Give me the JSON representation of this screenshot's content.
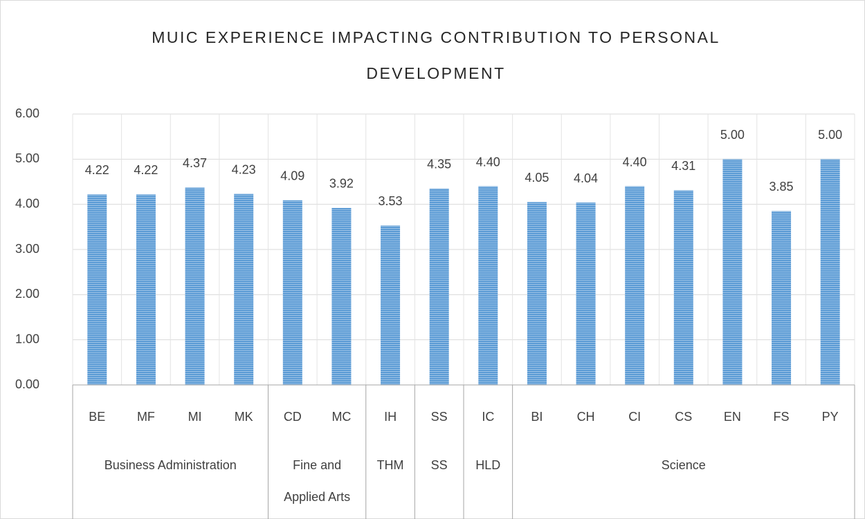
{
  "chart_data": {
    "type": "bar",
    "title": "MUIC EXPERIENCE IMPACTING CONTRIBUTION TO PERSONAL DEVELOPMENT",
    "categories": [
      "BE",
      "MF",
      "MI",
      "MK",
      "CD",
      "MC",
      "IH",
      "SS",
      "IC",
      "BI",
      "CH",
      "CI",
      "CS",
      "EN",
      "FS",
      "PY"
    ],
    "values": [
      4.22,
      4.22,
      4.37,
      4.23,
      4.09,
      3.92,
      3.53,
      4.35,
      4.4,
      4.05,
      4.04,
      4.4,
      4.31,
      5,
      3.85,
      5
    ],
    "value_labels": [
      "4.22",
      "4.22",
      "4.37",
      "4.23",
      "4.09",
      "3.92",
      "3.53",
      "4.35",
      "4.40",
      "4.05",
      "4.04",
      "4.40",
      "4.31",
      "5.00",
      "3.85",
      "5.00"
    ],
    "groups": [
      {
        "name": "Business Administration",
        "span": 4
      },
      {
        "name": "Fine and Applied Arts",
        "span": 2
      },
      {
        "name": "THM",
        "span": 1
      },
      {
        "name": "SS",
        "span": 1
      },
      {
        "name": "HLD",
        "span": 1
      },
      {
        "name": "Science",
        "span": 7
      }
    ],
    "color": "#5b9bd5",
    "ylim": [
      0,
      6
    ],
    "yticks": [
      {
        "value": 0,
        "label": "0.00"
      },
      {
        "value": 1,
        "label": "1.00"
      },
      {
        "value": 2,
        "label": "2.00"
      },
      {
        "value": 3,
        "label": "3.00"
      },
      {
        "value": 4,
        "label": "4.00"
      },
      {
        "value": 5,
        "label": "5.00"
      },
      {
        "value": 6,
        "label": "6.00"
      }
    ],
    "grid": true
  }
}
